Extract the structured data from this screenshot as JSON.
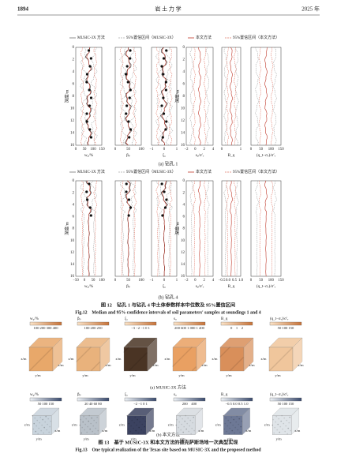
{
  "header": {
    "page": "1894",
    "journal": "岩 土 力 学",
    "year": "2025 年"
  },
  "figure12": {
    "legend": [
      "MUSIC-3X 方法",
      "95%置信区间（MUSIC-3X）",
      "本文方法",
      "95%置信区间（本文方法）"
    ],
    "depth_label": "深度/m",
    "depth_ticks": [
      "0",
      "2",
      "4",
      "6",
      "8",
      "10",
      "12",
      "14",
      "16"
    ],
    "panels_a": [
      {
        "xlabel": "w₀/%",
        "xticks": [
          "0",
          "50",
          "100",
          "150"
        ]
      },
      {
        "xlabel": "βₚ",
        "xticks": [
          "0",
          "50",
          "100"
        ]
      },
      {
        "xlabel": "ξ꜀",
        "xticks": [
          "−1",
          "0",
          "1"
        ]
      },
      {
        "xlabel": "sᵤ/σ′ᵥ",
        "xticks": [
          "−2",
          "0",
          "2",
          "4"
        ]
      },
      {
        "xlabel": "B_q",
        "xticks": [
          "0",
          "1"
        ]
      },
      {
        "xlabel": "(q_t−σᵥ)/σ′ᵥ",
        "xticks": [
          "0",
          "50",
          "100",
          "150"
        ]
      }
    ],
    "subcaption_a": "(a) 钻孔 1",
    "panels_b": [
      {
        "xlabel": "w₀/%",
        "xticks": [
          "−50",
          "0",
          "50",
          "100"
        ]
      },
      {
        "xlabel": "βₚ",
        "xticks": [
          "0",
          "50",
          "100"
        ]
      },
      {
        "xlabel": "ξ꜀",
        "xticks": [
          "−1",
          "0",
          "1"
        ]
      },
      {
        "xlabel": "sᵤ/σ′ᵥ",
        "xticks": [
          "−2",
          "0",
          "2",
          "4"
        ]
      },
      {
        "xlabel": "B_q",
        "xticks": [
          "−0.5",
          "0.0",
          "0.5",
          "1.0"
        ]
      },
      {
        "xlabel": "(q_t−σᵥ)/σ′ᵥ",
        "xticks": [
          "0",
          "50",
          "100",
          "150"
        ]
      }
    ],
    "subcaption_b": "(b) 钻孔 4",
    "caption_cn": "图 12　钻孔 1 与钻孔 4 中土体参数样本中位数及 95%置信区间",
    "caption_en": "Fig.12　Median and 95% confidence intervals of soil parameters' samples at soundings 1 and 4"
  },
  "figure13": {
    "rows": [
      {
        "subcaption": "(a) MUSIC-3X 方法",
        "colorbars": [
          {
            "name": "w₀/%",
            "ticks": "100 200 300 400"
          },
          {
            "name": "βₚ",
            "ticks": "100 200 250"
          },
          {
            "name": "ξ꜀",
            "ticks": "−3 −2 −1 0 1"
          },
          {
            "name": "sᵤ",
            "ticks": "200 600 1 000 1 400"
          },
          {
            "name": "B_q",
            "ticks": "0　1　2"
          },
          {
            "name": "(q_t−σᵥ)/σ′ᵥ",
            "ticks": "50 100 150"
          }
        ]
      },
      {
        "subcaption": "(b) 本文方法",
        "colorbars": [
          {
            "name": "w₀/%",
            "ticks": "50 100 150"
          },
          {
            "name": "βₚ",
            "ticks": "20 40 60 80"
          },
          {
            "name": "ξ꜀",
            "ticks": "−2 −1 0 1"
          },
          {
            "name": "sᵤ",
            "ticks": "200　400"
          },
          {
            "name": "B_q",
            "ticks": "−0.5 0.0 0.5 1.0"
          },
          {
            "name": "(q_t−σᵥ)/σ′ᵥ",
            "ticks": "50 100 150"
          }
        ]
      }
    ],
    "axis_z": "z/m",
    "axis_x": "x/m",
    "axis_y": "y/m",
    "caption_cn": "图 13　基于 MUSIC-3X 和本文方法的德克萨斯场地一次典型实现",
    "caption_en": "Fig.13　One typical realization of the Texas site based on MUSIC-3X and the proposed method"
  }
}
